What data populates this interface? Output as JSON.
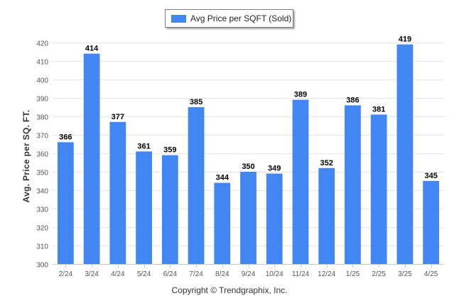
{
  "chart_data": {
    "type": "bar",
    "categories": [
      "2/24",
      "3/24",
      "4/24",
      "5/24",
      "6/24",
      "7/24",
      "8/24",
      "9/24",
      "10/24",
      "11/24",
      "12/24",
      "1/25",
      "2/25",
      "3/25",
      "4/25"
    ],
    "series": [
      {
        "name": "Avg Price per SQFT (Sold)",
        "values": [
          366,
          414,
          377,
          361,
          359,
          385,
          344,
          350,
          349,
          389,
          352,
          386,
          381,
          419,
          345
        ]
      }
    ],
    "ylabel": "Avg. Price per SQ. FT.",
    "xlabel": "",
    "ylim": [
      300,
      420
    ],
    "yticks": [
      300,
      310,
      320,
      330,
      340,
      350,
      360,
      370,
      380,
      390,
      400,
      410,
      420
    ],
    "grid": true,
    "legend": "top-center",
    "bar_color": "#4286f4",
    "data_labels": true
  },
  "footer": {
    "copyright": "Copyright © Trendgraphix, Inc."
  }
}
